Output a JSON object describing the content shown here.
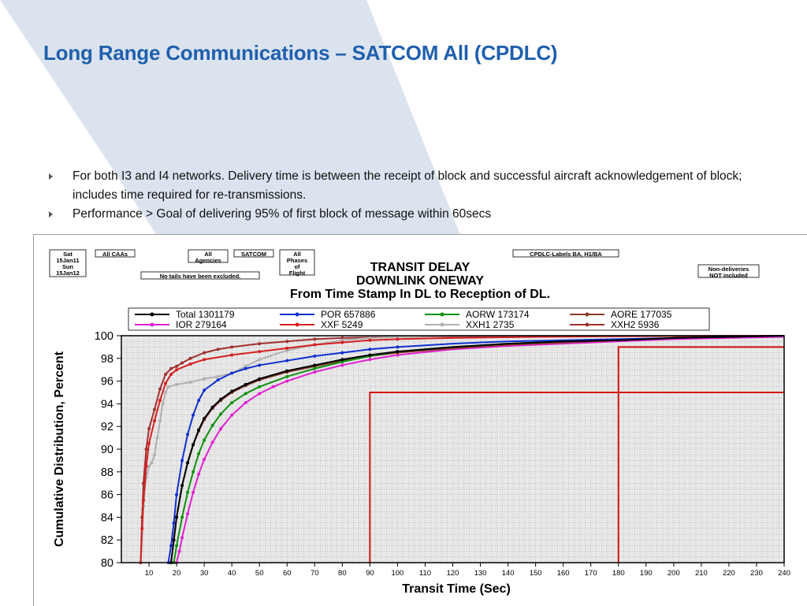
{
  "slide": {
    "title": "Long Range Communications – SATCOM All (CPDLC)",
    "bullets": [
      "For both I3 and I4 networks.  Delivery time is between the receipt of block and successful aircraft acknowledgement of block; includes time required for re-transmissions.",
      "Performance > Goal of delivering 95% of first block of message within 60secs"
    ],
    "colors": {
      "title": "#1f5fad",
      "background_band": "#dbe3ee"
    }
  },
  "chart_data": {
    "type": "line",
    "title": "TRANSIT DELAY",
    "subtitle": "DOWNLINK ONEWAY",
    "subtitle2": "From Time Stamp In DL to Reception of DL.",
    "xlabel": "Transit Time (Sec)",
    "ylabel": "Cumulative Distribution, Percent",
    "xlim": [
      0,
      240
    ],
    "ylim": [
      80,
      100
    ],
    "x_ticks": [
      10,
      20,
      30,
      40,
      50,
      60,
      70,
      80,
      90,
      100,
      110,
      120,
      130,
      140,
      150,
      160,
      170,
      180,
      190,
      200,
      210,
      220,
      230,
      240
    ],
    "y_ticks": [
      80,
      82,
      84,
      86,
      88,
      90,
      92,
      94,
      96,
      98,
      100
    ],
    "grid": true,
    "legend_position": "top",
    "info_boxes": {
      "date_lines": [
        "Sat",
        "15Jan11",
        "Sun",
        "15Jan12"
      ],
      "caas": "All CAAs",
      "agencies_lines": [
        "All",
        "Agencies"
      ],
      "satcom": "SATCOM",
      "phases_lines": [
        "All",
        "Phases",
        "of",
        "Flight"
      ],
      "labels": "CPDLC-Labels BA, H1/BA",
      "tails": "No tails have been excluded.",
      "nondeliv_lines": [
        "Non-deliveries",
        "NOT included"
      ]
    },
    "targets": [
      {
        "x": 90,
        "y": 95,
        "color": "#d01010"
      },
      {
        "x": 180,
        "y": 99,
        "color": "#d01010"
      }
    ],
    "series": [
      {
        "name": "Total 1301179",
        "color": "#000000",
        "x": [
          18,
          19,
          20,
          22,
          24,
          26,
          28,
          30,
          33,
          36,
          40,
          45,
          50,
          60,
          70,
          80,
          90,
          100,
          120,
          140,
          160,
          180,
          200,
          220,
          240
        ],
        "values": [
          80,
          82,
          84,
          86.8,
          88.8,
          90.4,
          91.7,
          92.7,
          93.7,
          94.4,
          95.1,
          95.7,
          96.2,
          96.9,
          97.4,
          97.9,
          98.3,
          98.6,
          99.0,
          99.3,
          99.5,
          99.6,
          99.8,
          99.9,
          100
        ]
      },
      {
        "name": "POR 657886",
        "color": "#1030d0",
        "x": [
          17,
          18,
          19,
          20,
          22,
          24,
          26,
          28,
          30,
          35,
          40,
          45,
          50,
          60,
          70,
          80,
          90,
          100,
          120,
          140,
          160,
          180,
          200,
          240
        ],
        "values": [
          80,
          81.5,
          83.5,
          86,
          89,
          91.3,
          93,
          94.3,
          95.2,
          96.1,
          96.7,
          97.1,
          97.4,
          97.8,
          98.2,
          98.5,
          98.8,
          99.0,
          99.3,
          99.5,
          99.6,
          99.7,
          99.8,
          100
        ]
      },
      {
        "name": "AORW 173174",
        "color": "#109010",
        "x": [
          19,
          20,
          22,
          24,
          26,
          28,
          30,
          33,
          36,
          40,
          45,
          50,
          60,
          70,
          80,
          90,
          100,
          120,
          140,
          160,
          180,
          200,
          240
        ],
        "values": [
          80,
          81.5,
          84,
          86.2,
          88,
          89.6,
          90.8,
          92.1,
          93.1,
          94.1,
          94.9,
          95.5,
          96.4,
          97.1,
          97.7,
          98.2,
          98.6,
          99.0,
          99.3,
          99.5,
          99.6,
          99.8,
          100
        ]
      },
      {
        "name": "AORE 177035",
        "color": "#8b3a2a",
        "x": [
          18,
          19,
          20,
          22,
          24,
          26,
          28,
          30,
          33,
          36,
          40,
          45,
          50,
          60,
          70,
          80,
          90,
          100,
          120,
          140,
          160,
          180,
          200,
          240
        ],
        "values": [
          80,
          82,
          84,
          86.8,
          88.8,
          90.4,
          91.6,
          92.6,
          93.6,
          94.3,
          95.0,
          95.6,
          96.1,
          96.8,
          97.3,
          97.8,
          98.2,
          98.5,
          98.9,
          99.2,
          99.4,
          99.6,
          99.8,
          100
        ]
      },
      {
        "name": "IOR 279164",
        "color": "#e020d0",
        "x": [
          20,
          21,
          22,
          24,
          26,
          28,
          30,
          33,
          36,
          40,
          45,
          50,
          55,
          60,
          70,
          80,
          90,
          100,
          120,
          140,
          160,
          180,
          200,
          220,
          240
        ],
        "values": [
          80,
          81,
          82.2,
          84.3,
          86.2,
          87.8,
          89.1,
          90.6,
          91.8,
          93,
          94.1,
          94.9,
          95.5,
          96,
          96.8,
          97.4,
          97.9,
          98.3,
          98.8,
          99.1,
          99.3,
          99.5,
          99.7,
          99.8,
          99.9
        ]
      },
      {
        "name": "XXF 5249",
        "color": "#d42020",
        "x": [
          7,
          7.5,
          8,
          9,
          10,
          12,
          14,
          16,
          18,
          20,
          25,
          30,
          40,
          50,
          60,
          70,
          80,
          90,
          100,
          120,
          150,
          180,
          240
        ],
        "values": [
          80,
          83,
          85.5,
          88.5,
          90.5,
          92.5,
          94.3,
          95.8,
          96.6,
          97.0,
          97.5,
          97.9,
          98.3,
          98.6,
          98.9,
          99.2,
          99.4,
          99.6,
          99.7,
          99.8,
          99.9,
          99.95,
          100
        ]
      },
      {
        "name": "XXH1 2735",
        "color": "#b0b0b0",
        "x": [
          7,
          8,
          9,
          10,
          11,
          12,
          13,
          14,
          15,
          16,
          17,
          20,
          25,
          30,
          35,
          40,
          45,
          50,
          60,
          70,
          80,
          90,
          100,
          120,
          150,
          240
        ],
        "values": [
          80,
          85,
          87.5,
          88.5,
          88.8,
          89.5,
          91,
          92.5,
          94,
          95,
          95.5,
          95.7,
          95.9,
          96.2,
          96.4,
          96.7,
          97.3,
          97.9,
          98.7,
          99.2,
          99.6,
          99.8,
          99.9,
          100,
          100,
          100
        ]
      },
      {
        "name": "XXH2 5936",
        "color": "#a03030",
        "x": [
          7,
          7.5,
          8,
          9,
          10,
          12,
          14,
          16,
          18,
          20,
          22,
          25,
          30,
          35,
          40,
          50,
          60,
          70,
          80,
          90,
          100,
          120,
          150,
          240
        ],
        "values": [
          80,
          84,
          87,
          90,
          91.8,
          93.5,
          95.3,
          96.6,
          97.1,
          97.3,
          97.6,
          98.0,
          98.5,
          98.8,
          99.0,
          99.3,
          99.5,
          99.7,
          99.8,
          99.85,
          99.9,
          99.95,
          100,
          100
        ]
      }
    ]
  }
}
